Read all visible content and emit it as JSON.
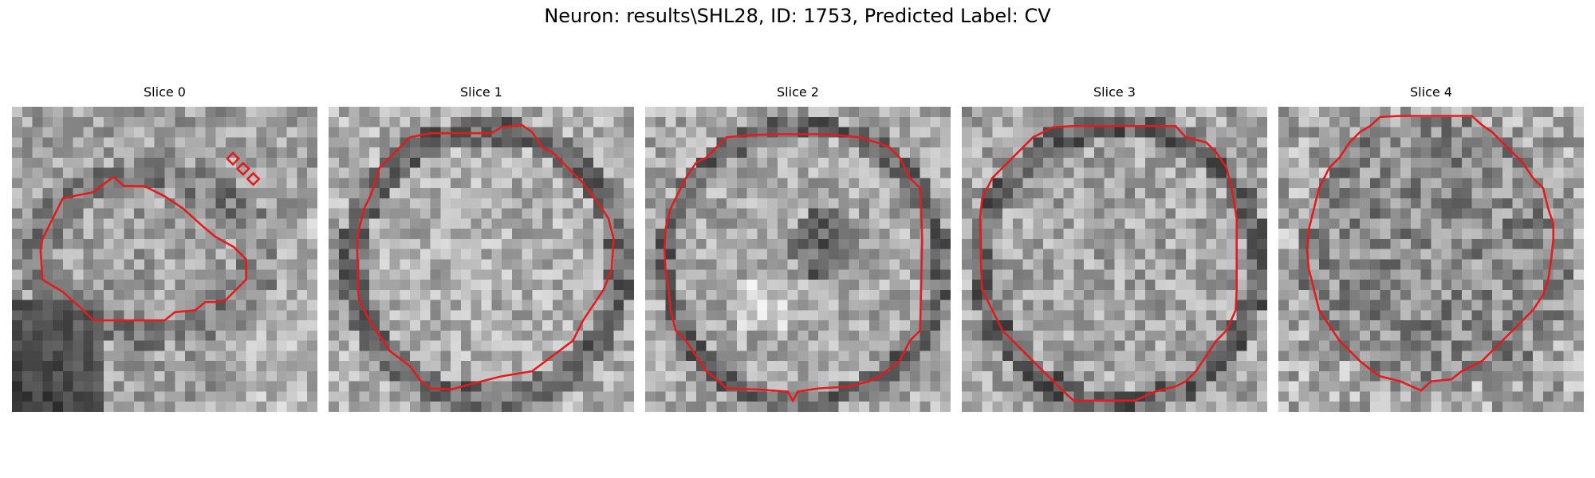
{
  "figure": {
    "title": "Neuron: results\\SHL28, ID: 1753, Predicted Label: CV",
    "contour_color": "#e41a1c",
    "slices": [
      {
        "label": "Slice 0"
      },
      {
        "label": "Slice 1"
      },
      {
        "label": "Slice 2"
      },
      {
        "label": "Slice 3"
      },
      {
        "label": "Slice 4"
      }
    ]
  }
}
